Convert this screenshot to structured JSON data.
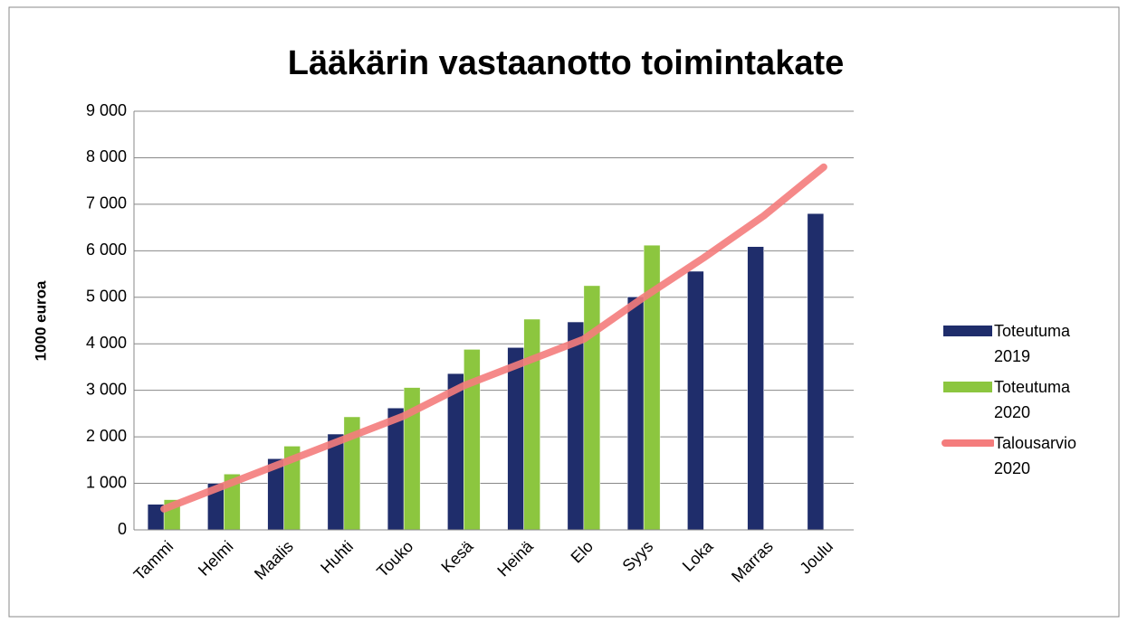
{
  "chart_data": {
    "type": "bar-line",
    "title": "Lääkärin vastaanotto toimintakate",
    "ylabel": "1000 euroa",
    "categories": [
      "Tammi",
      "Helmi",
      "Maalis",
      "Huhti",
      "Touko",
      "Kesä",
      "Heinä",
      "Elo",
      "Syys",
      "Loka",
      "Marras",
      "Joulu"
    ],
    "series": [
      {
        "name": "Toteutuma 2019",
        "type": "bar",
        "color": "#1f2d6b",
        "values": [
          550,
          1000,
          1530,
          2060,
          2620,
          3360,
          3920,
          4470,
          5010,
          5560,
          6090,
          6800
        ]
      },
      {
        "name": "Toteutuma 2020",
        "type": "bar",
        "color": "#8cc63f",
        "values": [
          650,
          1200,
          1800,
          2430,
          3060,
          3880,
          4530,
          5250,
          6120,
          null,
          null,
          null
        ]
      },
      {
        "name": "Talousarvio 2020",
        "type": "line",
        "color": "#f47c7c",
        "values": [
          450,
          950,
          1450,
          1950,
          2450,
          3100,
          3600,
          4100,
          5000,
          5850,
          6750,
          7800
        ]
      }
    ],
    "ylim": [
      0,
      9000
    ],
    "yticks": [
      0,
      {
        "value": 1000,
        "label": "1 000"
      },
      {
        "value": 2000,
        "label": "2 000"
      },
      {
        "value": 3000,
        "label": "3 000"
      },
      {
        "value": 4000,
        "label": "4 000"
      },
      {
        "value": 5000,
        "label": "5 000"
      },
      {
        "value": 6000,
        "label": "6 000"
      },
      {
        "value": 7000,
        "label": "7 000"
      },
      {
        "value": 8000,
        "label": "8 000"
      },
      {
        "value": 9000,
        "label": "9 000"
      }
    ],
    "grid": true,
    "legend": "right"
  }
}
